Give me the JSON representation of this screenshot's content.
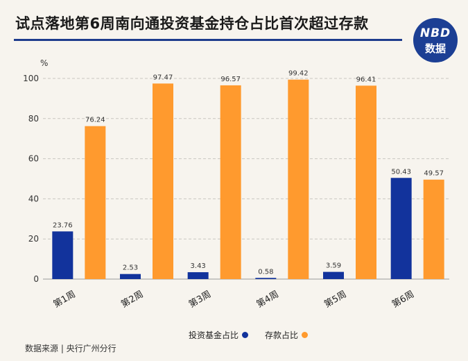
{
  "header": {
    "title": "试点落地第6周南向通投资基金持仓占比首次超过存款",
    "logo_top": "NBD",
    "logo_bottom": "数据"
  },
  "source": "数据来源 | 央行广州分行",
  "colors": {
    "fund": "#12339c",
    "deposit": "#ff9a2e",
    "accent": "#1d3c8c"
  },
  "chart_data": {
    "type": "bar",
    "title": "试点落地第6周南向通投资基金持仓占比首次超过存款",
    "ylabel": "%",
    "xlabel": "",
    "ylim": [
      0,
      100
    ],
    "yticks": [
      0,
      20,
      40,
      60,
      80,
      100
    ],
    "grid": true,
    "legend_position": "bottom",
    "categories": [
      "第1周",
      "第2周",
      "第3周",
      "第4周",
      "第5周",
      "第6周"
    ],
    "series": [
      {
        "name": "投资基金占比",
        "color": "#12339c",
        "values": [
          23.76,
          2.53,
          3.43,
          0.58,
          3.59,
          50.43
        ]
      },
      {
        "name": "存款占比",
        "color": "#ff9a2e",
        "values": [
          76.24,
          97.47,
          96.57,
          99.42,
          96.41,
          49.57
        ]
      }
    ]
  }
}
